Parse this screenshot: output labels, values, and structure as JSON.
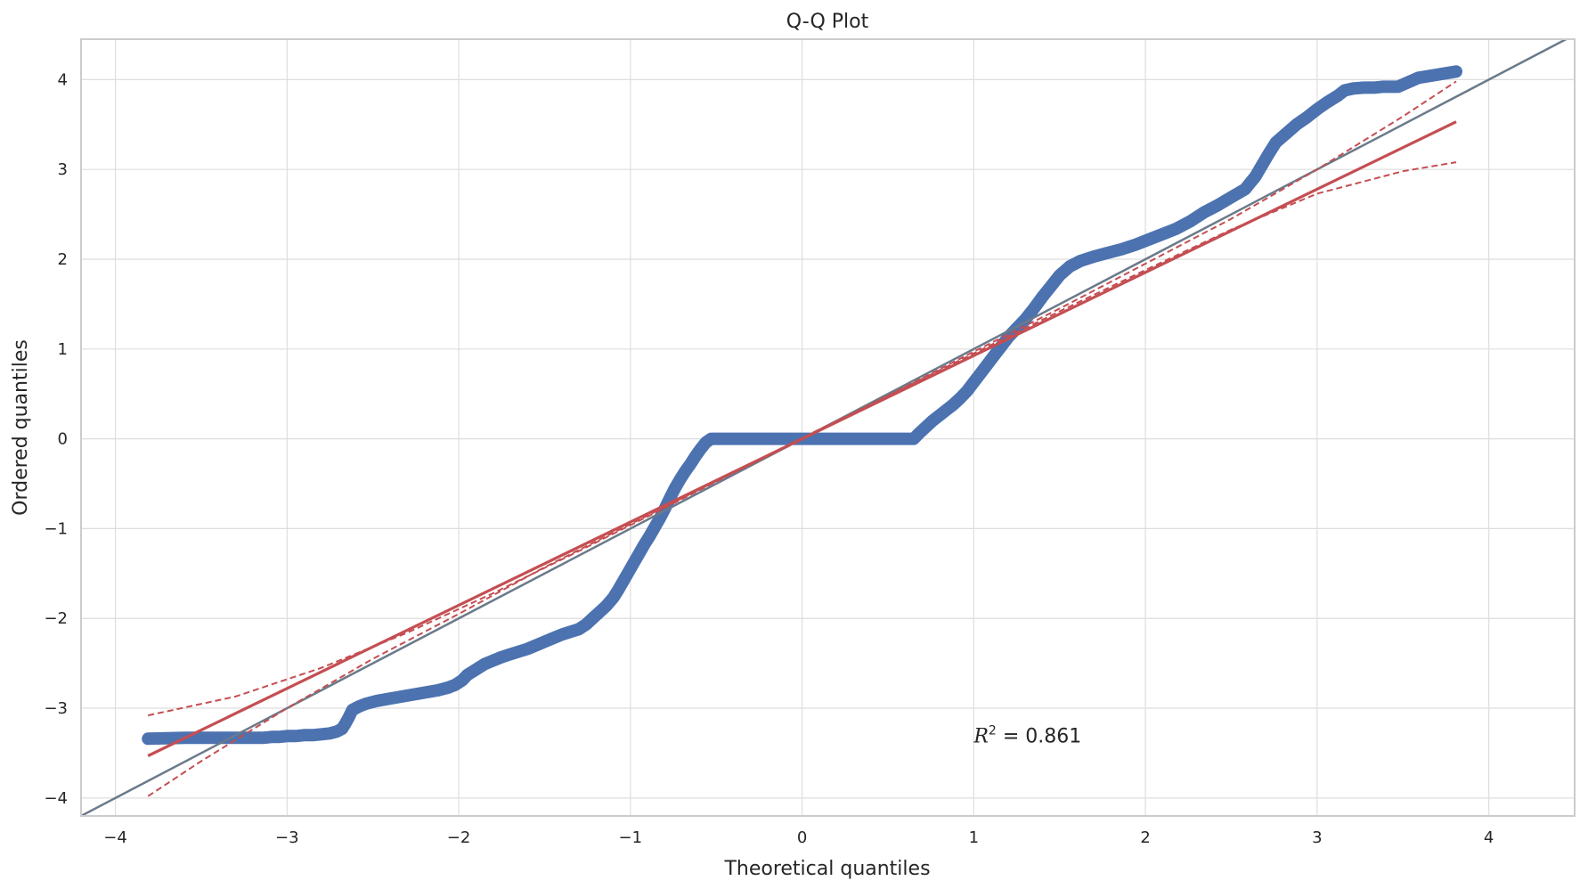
{
  "chart_data": {
    "type": "scatter",
    "title": "Q-Q Plot",
    "xlabel": "Theoretical quantiles",
    "ylabel": "Ordered quantiles",
    "xlim": [
      -4.2,
      4.5
    ],
    "ylim": [
      -4.2,
      4.45
    ],
    "xticks": [
      -4,
      -3,
      -2,
      -1,
      0,
      1,
      2,
      3,
      4
    ],
    "yticks": [
      -4,
      -3,
      -2,
      -1,
      0,
      1,
      2,
      3,
      4
    ],
    "xtick_labels": [
      "−4",
      "−3",
      "−2",
      "−1",
      "0",
      "1",
      "2",
      "3",
      "4"
    ],
    "ytick_labels": [
      "−4",
      "−3",
      "−2",
      "−1",
      "0",
      "1",
      "2",
      "3",
      "4"
    ],
    "grid": true,
    "annotation": {
      "label": "R",
      "sup": "2",
      "text": " = 0.861",
      "x": 1.0,
      "y": -3.3
    },
    "series": [
      {
        "type": "scatter",
        "color": "#4c72b0",
        "points": [
          [
            -3.81,
            -3.34
          ],
          [
            -3.59,
            -3.33
          ],
          [
            -3.47,
            -3.33
          ],
          [
            -3.38,
            -3.33
          ],
          [
            -3.31,
            -3.33
          ],
          [
            -3.25,
            -3.33
          ],
          [
            -3.19,
            -3.33
          ],
          [
            -3.14,
            -3.33
          ],
          [
            -3.09,
            -3.32
          ],
          [
            -3.05,
            -3.32
          ],
          [
            -3.0,
            -3.31
          ],
          [
            -2.95,
            -3.31
          ],
          [
            -2.9,
            -3.3
          ],
          [
            -2.85,
            -3.3
          ],
          [
            -2.8,
            -3.29
          ],
          [
            -2.75,
            -3.28
          ],
          [
            -2.71,
            -3.26
          ],
          [
            -2.68,
            -3.23
          ],
          [
            -2.66,
            -3.17
          ],
          [
            -2.64,
            -3.1
          ],
          [
            -2.62,
            -3.02
          ],
          [
            -2.58,
            -2.98
          ],
          [
            -2.54,
            -2.95
          ],
          [
            -2.48,
            -2.92
          ],
          [
            -2.42,
            -2.9
          ],
          [
            -2.36,
            -2.88
          ],
          [
            -2.3,
            -2.86
          ],
          [
            -2.24,
            -2.84
          ],
          [
            -2.18,
            -2.82
          ],
          [
            -2.12,
            -2.8
          ],
          [
            -2.06,
            -2.77
          ],
          [
            -2.02,
            -2.74
          ],
          [
            -1.98,
            -2.69
          ],
          [
            -1.95,
            -2.63
          ],
          [
            -1.9,
            -2.57
          ],
          [
            -1.85,
            -2.51
          ],
          [
            -1.8,
            -2.47
          ],
          [
            -1.75,
            -2.43
          ],
          [
            -1.7,
            -2.4
          ],
          [
            -1.65,
            -2.37
          ],
          [
            -1.6,
            -2.34
          ],
          [
            -1.55,
            -2.3
          ],
          [
            -1.5,
            -2.26
          ],
          [
            -1.45,
            -2.22
          ],
          [
            -1.4,
            -2.18
          ],
          [
            -1.35,
            -2.15
          ],
          [
            -1.3,
            -2.12
          ],
          [
            -1.26,
            -2.07
          ],
          [
            -1.22,
            -2.0
          ],
          [
            -1.18,
            -1.93
          ],
          [
            -1.14,
            -1.86
          ],
          [
            -1.1,
            -1.77
          ],
          [
            -1.07,
            -1.68
          ],
          [
            -1.04,
            -1.58
          ],
          [
            -1.01,
            -1.48
          ],
          [
            -0.98,
            -1.38
          ],
          [
            -0.95,
            -1.28
          ],
          [
            -0.92,
            -1.18
          ],
          [
            -0.89,
            -1.09
          ],
          [
            -0.86,
            -0.99
          ],
          [
            -0.83,
            -0.89
          ],
          [
            -0.8,
            -0.78
          ],
          [
            -0.77,
            -0.66
          ],
          [
            -0.74,
            -0.55
          ],
          [
            -0.71,
            -0.45
          ],
          [
            -0.68,
            -0.36
          ],
          [
            -0.65,
            -0.28
          ],
          [
            -0.62,
            -0.19
          ],
          [
            -0.59,
            -0.11
          ],
          [
            -0.56,
            -0.04
          ],
          [
            -0.53,
            0.0
          ],
          [
            -0.45,
            0.0
          ],
          [
            -0.35,
            0.0
          ],
          [
            -0.25,
            0.0
          ],
          [
            -0.15,
            0.0
          ],
          [
            -0.05,
            0.0
          ],
          [
            0.05,
            0.0
          ],
          [
            0.15,
            0.0
          ],
          [
            0.25,
            0.0
          ],
          [
            0.35,
            0.0
          ],
          [
            0.45,
            0.0
          ],
          [
            0.55,
            0.0
          ],
          [
            0.65,
            0.0
          ],
          [
            0.68,
            0.06
          ],
          [
            0.72,
            0.13
          ],
          [
            0.76,
            0.2
          ],
          [
            0.8,
            0.26
          ],
          [
            0.84,
            0.32
          ],
          [
            0.88,
            0.38
          ],
          [
            0.92,
            0.45
          ],
          [
            0.96,
            0.53
          ],
          [
            1.0,
            0.63
          ],
          [
            1.04,
            0.73
          ],
          [
            1.08,
            0.83
          ],
          [
            1.12,
            0.93
          ],
          [
            1.16,
            1.03
          ],
          [
            1.2,
            1.13
          ],
          [
            1.25,
            1.23
          ],
          [
            1.3,
            1.33
          ],
          [
            1.35,
            1.45
          ],
          [
            1.4,
            1.58
          ],
          [
            1.45,
            1.7
          ],
          [
            1.5,
            1.82
          ],
          [
            1.56,
            1.92
          ],
          [
            1.62,
            1.98
          ],
          [
            1.7,
            2.03
          ],
          [
            1.78,
            2.07
          ],
          [
            1.86,
            2.11
          ],
          [
            1.94,
            2.16
          ],
          [
            2.02,
            2.22
          ],
          [
            2.1,
            2.28
          ],
          [
            2.18,
            2.34
          ],
          [
            2.26,
            2.42
          ],
          [
            2.34,
            2.52
          ],
          [
            2.42,
            2.6
          ],
          [
            2.5,
            2.69
          ],
          [
            2.58,
            2.78
          ],
          [
            2.64,
            2.92
          ],
          [
            2.68,
            3.05
          ],
          [
            2.72,
            3.18
          ],
          [
            2.76,
            3.3
          ],
          [
            2.82,
            3.4
          ],
          [
            2.88,
            3.5
          ],
          [
            2.94,
            3.58
          ],
          [
            3.0,
            3.67
          ],
          [
            3.06,
            3.75
          ],
          [
            3.12,
            3.82
          ],
          [
            3.16,
            3.88
          ],
          [
            3.21,
            3.9
          ],
          [
            3.27,
            3.91
          ],
          [
            3.33,
            3.91
          ],
          [
            3.38,
            3.92
          ],
          [
            3.47,
            3.92
          ],
          [
            3.59,
            4.02
          ],
          [
            3.81,
            4.09
          ]
        ]
      },
      {
        "type": "line",
        "role": "fit",
        "color": "#c44e52",
        "points": [
          [
            -3.81,
            -3.53
          ],
          [
            3.81,
            3.53
          ]
        ]
      },
      {
        "type": "line",
        "role": "confidence-upper",
        "style": "dashed",
        "color": "#c44e52",
        "points": [
          [
            -3.81,
            -3.08
          ],
          [
            -3.3,
            -2.87
          ],
          [
            -2.8,
            -2.55
          ],
          [
            -2.3,
            -2.16
          ],
          [
            -1.8,
            -1.72
          ],
          [
            -1.3,
            -1.25
          ],
          [
            -0.8,
            -0.77
          ],
          [
            -0.3,
            -0.28
          ],
          [
            0,
            0.01
          ],
          [
            0.5,
            0.48
          ],
          [
            1.0,
            0.95
          ],
          [
            1.5,
            1.42
          ],
          [
            2.0,
            1.88
          ],
          [
            2.5,
            2.33
          ],
          [
            3.0,
            2.73
          ],
          [
            3.5,
            2.98
          ],
          [
            3.81,
            3.08
          ]
        ]
      },
      {
        "type": "line",
        "role": "confidence-lower",
        "style": "dashed",
        "color": "#c44e52",
        "points": [
          [
            -3.81,
            -3.98
          ],
          [
            -3.5,
            -3.59
          ],
          [
            -3.0,
            -3.0
          ],
          [
            -2.5,
            -2.45
          ],
          [
            -2.0,
            -1.95
          ],
          [
            -1.5,
            -1.43
          ],
          [
            -1.0,
            -0.95
          ],
          [
            -0.5,
            -0.47
          ],
          [
            0,
            -0.01
          ],
          [
            0.5,
            0.48
          ],
          [
            1.0,
            0.97
          ],
          [
            1.5,
            1.45
          ],
          [
            2.0,
            1.95
          ],
          [
            2.5,
            2.45
          ],
          [
            3.0,
            3.0
          ],
          [
            3.5,
            3.59
          ],
          [
            3.81,
            3.98
          ]
        ]
      },
      {
        "type": "line",
        "role": "reference-45deg",
        "color": "#6a7a8a",
        "points": [
          [
            -4.2,
            -4.2
          ],
          [
            4.5,
            4.5
          ]
        ]
      }
    ]
  }
}
